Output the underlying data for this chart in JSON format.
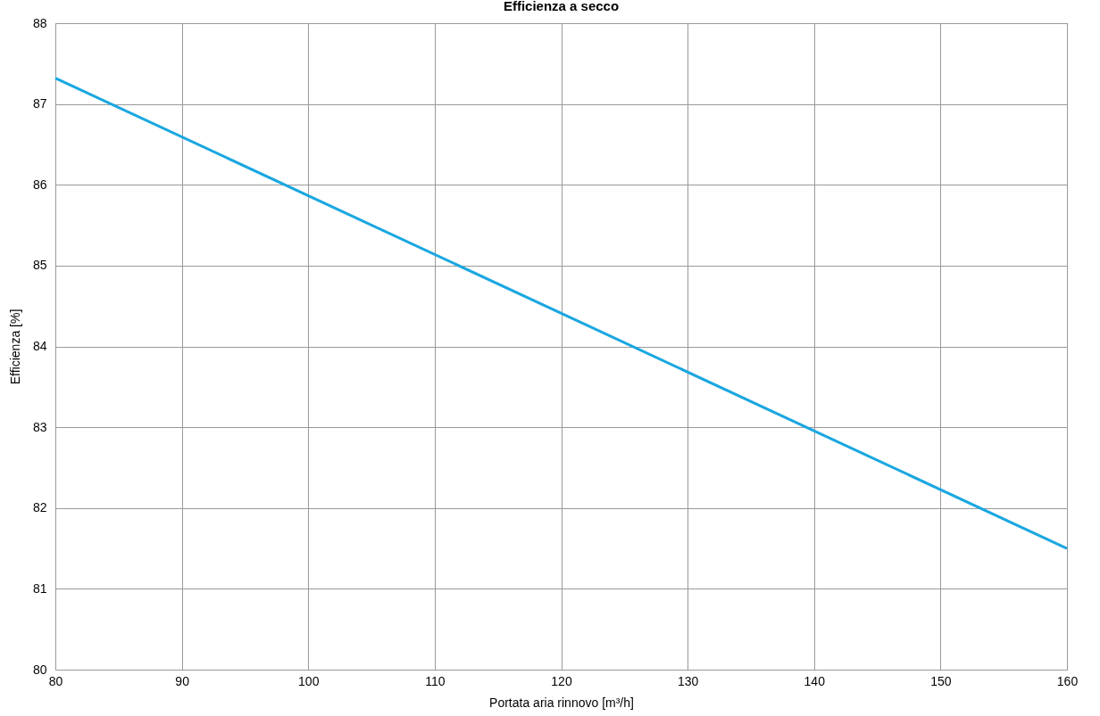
{
  "chart_data": {
    "type": "line",
    "title": "Efficienza a secco",
    "xlabel": "Portata aria rinnovo [m³/h]",
    "ylabel": "Efficienza [%]",
    "x": [
      80,
      160
    ],
    "series": [
      {
        "color": "#1aa7e0",
        "values": [
          87.32,
          81.5
        ]
      }
    ],
    "xlim": [
      80,
      160
    ],
    "xticks": [
      80,
      90,
      100,
      110,
      120,
      130,
      140,
      150,
      160
    ],
    "ylim": [
      80,
      88
    ],
    "yticks": [
      80,
      81,
      82,
      83,
      84,
      85,
      86,
      87,
      88
    ],
    "grid": true,
    "marker": "none",
    "line_style": "solid"
  }
}
